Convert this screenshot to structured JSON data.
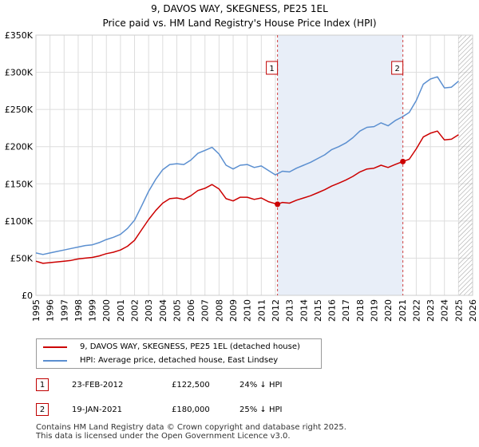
{
  "title_line1": "9, DAVOS WAY, SKEGNESS, PE25 1EL",
  "title_line2": "Price paid vs. HM Land Registry's House Price Index (HPI)",
  "colors": {
    "property": "#cc0000",
    "hpi": "#5b8fd0",
    "shade": "#e8eef8",
    "marker": "#cc0000"
  },
  "chart_data": {
    "type": "line",
    "title": "Price paid vs. HM Land Registry's House Price Index (HPI)",
    "xlabel": "",
    "ylabel": "",
    "xlim": [
      1995,
      2026
    ],
    "ylim": [
      0,
      350000
    ],
    "y_ticks": [
      0,
      50000,
      100000,
      150000,
      200000,
      250000,
      300000,
      350000
    ],
    "y_tick_labels": [
      "£0",
      "£50K",
      "£100K",
      "£150K",
      "£200K",
      "£250K",
      "£300K",
      "£350K"
    ],
    "x_ticks": [
      1995,
      1996,
      1997,
      1998,
      1999,
      2000,
      2001,
      2002,
      2003,
      2004,
      2005,
      2006,
      2007,
      2008,
      2009,
      2010,
      2011,
      2012,
      2013,
      2014,
      2015,
      2016,
      2017,
      2018,
      2019,
      2020,
      2021,
      2022,
      2023,
      2024,
      2025,
      2026
    ],
    "x_tick_labels": [
      "1995",
      "1996",
      "1997",
      "1998",
      "1999",
      "2000",
      "2001",
      "2002",
      "2003",
      "2004",
      "2005",
      "2006",
      "2007",
      "2008",
      "2009",
      "2010",
      "2011",
      "2012",
      "2013",
      "2014",
      "2015",
      "2016",
      "2017",
      "2018",
      "2019",
      "2020",
      "2021",
      "2022",
      "2023",
      "2024",
      "2025",
      "2026"
    ],
    "grid": true,
    "shaded_span": [
      2012.15,
      2021.05
    ],
    "future_hatch_from": 2025.0,
    "series": [
      {
        "name": "9, DAVOS WAY, SKEGNESS, PE25 1EL (detached house)",
        "x": [
          1995.0,
          1995.5,
          1996.0,
          1996.5,
          1997.0,
          1997.5,
          1998.0,
          1998.5,
          1999.0,
          1999.5,
          2000.0,
          2000.5,
          2001.0,
          2001.5,
          2002.0,
          2002.5,
          2003.0,
          2003.5,
          2004.0,
          2004.5,
          2005.0,
          2005.5,
          2006.0,
          2006.5,
          2007.0,
          2007.5,
          2008.0,
          2008.5,
          2009.0,
          2009.5,
          2010.0,
          2010.5,
          2011.0,
          2011.5,
          2012.15,
          2012.5,
          2013.0,
          2013.5,
          2014.0,
          2014.5,
          2015.0,
          2015.5,
          2016.0,
          2016.5,
          2017.0,
          2017.5,
          2018.0,
          2018.5,
          2019.0,
          2019.5,
          2020.0,
          2020.5,
          2021.05,
          2021.5,
          2022.0,
          2022.5,
          2023.0,
          2023.5,
          2024.0,
          2024.5,
          2025.0
        ],
        "values": [
          46000,
          43000,
          44000,
          45000,
          46000,
          47000,
          49000,
          50000,
          51000,
          53000,
          56000,
          58000,
          61000,
          66000,
          74000,
          88000,
          102000,
          114000,
          124000,
          130000,
          131000,
          129000,
          134000,
          141000,
          144000,
          149000,
          143000,
          130000,
          127000,
          132000,
          132000,
          129000,
          131000,
          126000,
          122500,
          125000,
          124000,
          128000,
          131000,
          134000,
          138000,
          142000,
          147000,
          151000,
          155000,
          160000,
          166000,
          170000,
          171000,
          175000,
          172000,
          176000,
          180000,
          183000,
          197000,
          213000,
          218000,
          221000,
          209000,
          210000,
          216000
        ]
      },
      {
        "name": "HPI: Average price, detached house, East Lindsey",
        "x": [
          1995.0,
          1995.5,
          1996.0,
          1996.5,
          1997.0,
          1997.5,
          1998.0,
          1998.5,
          1999.0,
          1999.5,
          2000.0,
          2000.5,
          2001.0,
          2001.5,
          2002.0,
          2002.5,
          2003.0,
          2003.5,
          2004.0,
          2004.5,
          2005.0,
          2005.5,
          2006.0,
          2006.5,
          2007.0,
          2007.5,
          2008.0,
          2008.5,
          2009.0,
          2009.5,
          2010.0,
          2010.5,
          2011.0,
          2011.5,
          2012.0,
          2012.5,
          2013.0,
          2013.5,
          2014.0,
          2014.5,
          2015.0,
          2015.5,
          2016.0,
          2016.5,
          2017.0,
          2017.5,
          2018.0,
          2018.5,
          2019.0,
          2019.5,
          2020.0,
          2020.5,
          2021.0,
          2021.5,
          2022.0,
          2022.5,
          2023.0,
          2023.5,
          2024.0,
          2024.5,
          2025.0
        ],
        "values": [
          57000,
          55000,
          57000,
          59000,
          61000,
          63000,
          65000,
          67000,
          68000,
          71000,
          75000,
          78000,
          82000,
          90000,
          101000,
          120000,
          140000,
          156000,
          169000,
          176000,
          177000,
          176000,
          182000,
          191000,
          195000,
          199000,
          190000,
          175000,
          170000,
          175000,
          176000,
          172000,
          174000,
          168000,
          162000,
          167000,
          166000,
          171000,
          175000,
          179000,
          184000,
          189000,
          196000,
          200000,
          205000,
          212000,
          221000,
          226000,
          227000,
          232000,
          228000,
          235000,
          240000,
          246000,
          262000,
          284000,
          291000,
          294000,
          279000,
          280000,
          288000
        ]
      }
    ],
    "annotations": [
      {
        "label": "1",
        "x": 2012.15,
        "y": 122500
      },
      {
        "label": "2",
        "x": 2021.05,
        "y": 180000
      }
    ]
  },
  "legend": {
    "property_label": "9, DAVOS WAY, SKEGNESS, PE25 1EL (detached house)",
    "hpi_label": "HPI: Average price, detached house, East Lindsey"
  },
  "transactions": [
    {
      "num": "1",
      "date": "23-FEB-2012",
      "price": "£122,500",
      "hpi": "24% ↓ HPI"
    },
    {
      "num": "2",
      "date": "19-JAN-2021",
      "price": "£180,000",
      "hpi": "25% ↓ HPI"
    }
  ],
  "footer": {
    "line1": "Contains HM Land Registry data © Crown copyright and database right 2025.",
    "line2": "This data is licensed under the Open Government Licence v3.0."
  }
}
